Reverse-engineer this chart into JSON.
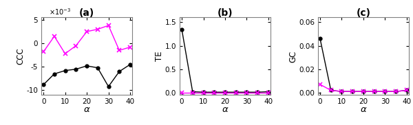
{
  "alpha": [
    0,
    5,
    10,
    15,
    20,
    25,
    30,
    35,
    40
  ],
  "ccc_yx": [
    -0.0088,
    -0.0065,
    -0.0058,
    -0.0055,
    -0.0048,
    -0.0052,
    -0.0092,
    -0.006,
    -0.0045
  ],
  "ccc_xy": [
    -0.0018,
    0.0015,
    -0.0022,
    -0.0005,
    0.0025,
    0.003,
    0.0038,
    -0.0015,
    -0.0008
  ],
  "te_yx": [
    1.35,
    0.02,
    0.01,
    0.01,
    0.01,
    0.01,
    0.01,
    0.01,
    0.02
  ],
  "te_xy": [
    0.005,
    0.005,
    0.005,
    0.005,
    0.005,
    0.005,
    0.005,
    0.005,
    0.005
  ],
  "gc_yx": [
    0.046,
    0.002,
    0.001,
    0.001,
    0.001,
    0.001,
    0.001,
    0.001,
    0.002
  ],
  "gc_xy": [
    0.007,
    0.002,
    0.001,
    0.001,
    0.001,
    0.001,
    0.001,
    0.001,
    0.002
  ],
  "color_yx": "black",
  "color_xy": "magenta",
  "label_a": "(a)",
  "label_b": "(b)",
  "label_c": "(c)",
  "ylabel_a": "CCC",
  "ylabel_b": "TE",
  "ylabel_c": "GC",
  "xlabel": "α",
  "ylim_a": [
    -0.011,
    0.0055
  ],
  "ylim_b": [
    -0.05,
    1.6
  ],
  "ylim_c": [
    -0.002,
    0.064
  ],
  "yticks_b": [
    0,
    0.5,
    1.0,
    1.5
  ],
  "yticks_c": [
    0,
    0.02,
    0.04,
    0.06
  ],
  "xticks": [
    0,
    10,
    20,
    30,
    40
  ],
  "xlim": [
    -1,
    41
  ]
}
